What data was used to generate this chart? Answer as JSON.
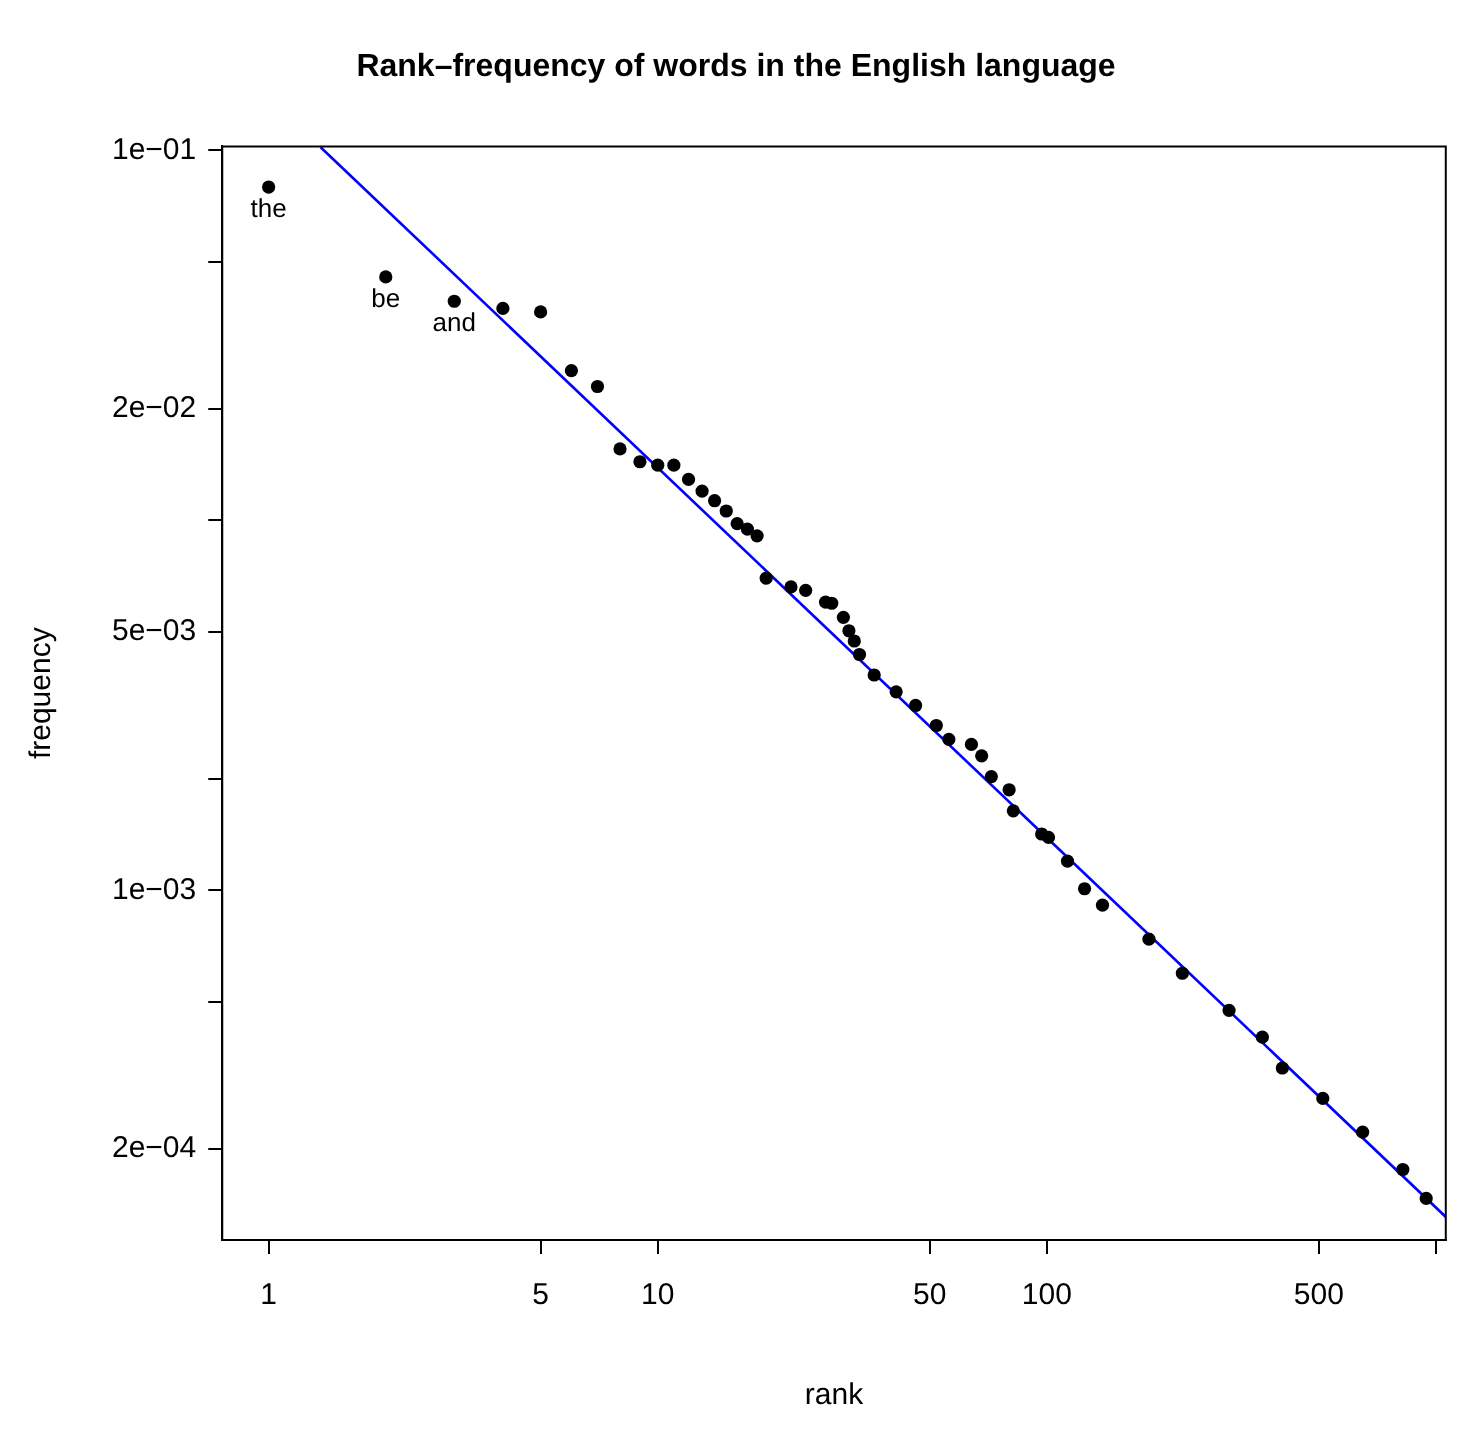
{
  "chart_data": {
    "type": "scatter",
    "title": "Rank–frequency of words in the English language",
    "xlabel": "rank",
    "ylabel": "frequency",
    "log": "xy",
    "grid": false,
    "legend": false,
    "marker": "circle",
    "xlim": [
      0.76,
      1060
    ],
    "ylim": [
      0.0001135,
      0.1025
    ],
    "xticks": [
      1,
      5,
      10,
      50,
      100,
      500,
      {
        "value": 1000,
        "label": null
      }
    ],
    "yticks": [
      {
        "value": 0.1,
        "label": "1e−01"
      },
      {
        "value": 0.05,
        "label": null
      },
      {
        "value": 0.02,
        "label": "2e−02"
      },
      {
        "value": 0.01,
        "label": null
      },
      {
        "value": 0.005,
        "label": "5e−03"
      },
      {
        "value": 0.002,
        "label": null
      },
      {
        "value": 0.001,
        "label": "1e−03"
      },
      {
        "value": 0.0005,
        "label": null
      },
      {
        "value": 0.0002,
        "label": "2e−04"
      }
    ],
    "annotations": [
      {
        "text": "the",
        "x": 1,
        "y": 0.0796
      },
      {
        "text": "be",
        "x": 2,
        "y": 0.0455
      },
      {
        "text": "and",
        "x": 3,
        "y": 0.0391
      }
    ],
    "series": [
      {
        "color": "#000000",
        "x": [
          1,
          2,
          3,
          4,
          5,
          6,
          7,
          8,
          9,
          10,
          11,
          12,
          13,
          14,
          15,
          16,
          17,
          18,
          19,
          22,
          24,
          27,
          28,
          30,
          31,
          32,
          33,
          36,
          41,
          46,
          52,
          56,
          64,
          68,
          72,
          80,
          82,
          97,
          101,
          113,
          125,
          139,
          183,
          223,
          294,
          358,
          403,
          512,
          648,
          822,
          944
        ],
        "values": [
          0.0796,
          0.0455,
          0.0391,
          0.0374,
          0.0366,
          0.0254,
          0.023,
          0.0156,
          0.0144,
          0.0141,
          0.0141,
          0.0129,
          0.012,
          0.0113,
          0.0106,
          0.0098,
          0.00947,
          0.00908,
          0.00698,
          0.00661,
          0.00647,
          0.00601,
          0.00597,
          0.00547,
          0.00503,
          0.00472,
          0.00434,
          0.00382,
          0.00344,
          0.00316,
          0.00279,
          0.00256,
          0.00248,
          0.00231,
          0.00203,
          0.00187,
          0.00164,
          0.00142,
          0.00139,
          0.0012,
          0.00101,
          0.000912,
          0.000738,
          0.000597,
          0.000474,
          0.000401,
          0.000331,
          0.000274,
          0.000222,
          0.000176,
          0.000147
        ]
      },
      {
        "type": "line",
        "color": "#0000ff",
        "marker": "none",
        "line_style": "solid",
        "x": [
          1.36,
          1060
        ],
        "values": [
          0.102,
          0.000131
        ]
      }
    ]
  }
}
